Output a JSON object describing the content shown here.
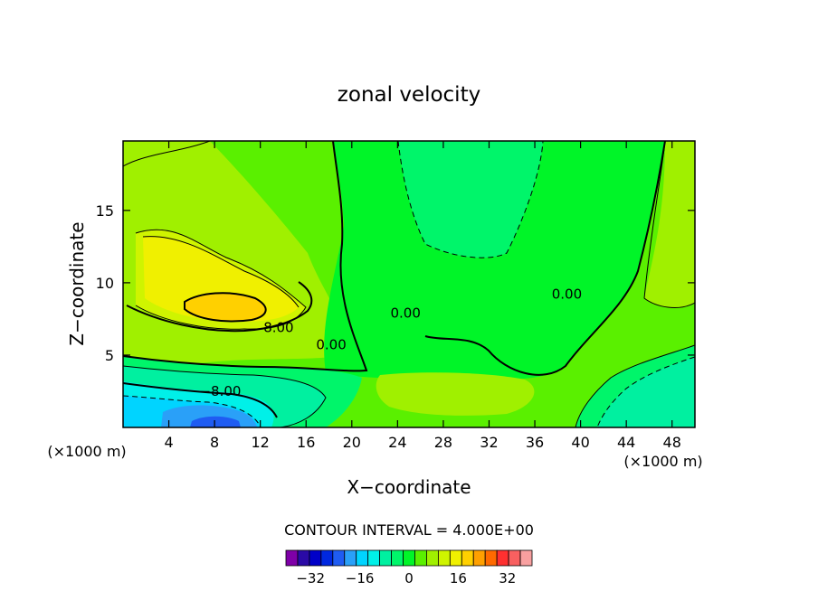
{
  "chart_data": {
    "type": "heatmap",
    "title": "zonal velocity",
    "xlabel": "X−coordinate",
    "ylabel": "Z−coordinate",
    "x_units": "(×1000 m)",
    "y_units": "(×1000 m)",
    "xlim": [
      0,
      50
    ],
    "ylim": [
      0,
      19.8
    ],
    "x_ticks": [
      4,
      8,
      12,
      16,
      20,
      24,
      28,
      32,
      36,
      40,
      44,
      48
    ],
    "y_ticks": [
      5,
      10,
      15
    ],
    "contour_interval_text": "CONTOUR INTERVAL = 4.000E+00",
    "contour_labels": [
      {
        "text": "8.00",
        "x": 13.6,
        "y": 6.6
      },
      {
        "text": "0.00",
        "x": 18.2,
        "y": 5.4
      },
      {
        "text": "0.00",
        "x": 24.7,
        "y": 7.6
      },
      {
        "text": "0.00",
        "x": 38.8,
        "y": 8.9
      },
      {
        "text": "−8.00",
        "x": 8.5,
        "y": 2.2
      }
    ],
    "colorbar": {
      "levels": [
        -40,
        -36,
        -32,
        -28,
        -24,
        -20,
        -16,
        -12,
        -8,
        -4,
        0,
        4,
        8,
        12,
        16,
        20,
        24,
        28,
        32,
        36,
        40
      ],
      "colors": [
        "#7f00a8",
        "#2a0aa6",
        "#0000c8",
        "#0028e0",
        "#1f5cf2",
        "#2aa0f8",
        "#00d4ff",
        "#00f0e8",
        "#00f0a0",
        "#00f56a",
        "#00f528",
        "#5af000",
        "#a0f000",
        "#cff400",
        "#f0f000",
        "#ffd000",
        "#ffa000",
        "#ff6a00",
        "#ff3030",
        "#f86060",
        "#f8a0a0"
      ],
      "tick_labels": [
        "−32",
        "−16",
        "0",
        "16",
        "32"
      ],
      "tick_values": [
        -32,
        -16,
        0,
        16,
        32
      ]
    }
  }
}
